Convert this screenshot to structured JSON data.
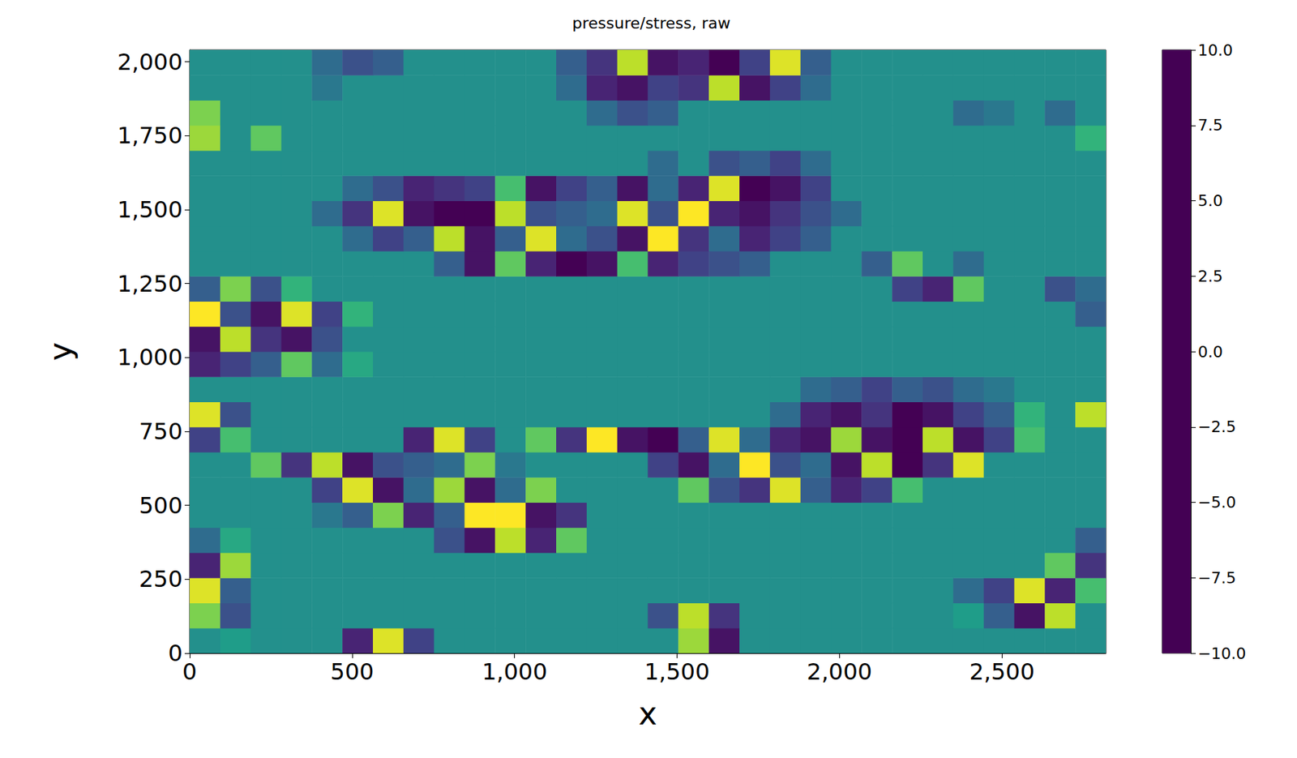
{
  "chart_data": {
    "type": "heatmap",
    "title": "pressure/stress, raw",
    "x_label": "x",
    "y_label": "y",
    "xlim": [
      0,
      2820
    ],
    "ylim": [
      0,
      2040
    ],
    "xticks": [
      0,
      500,
      1000,
      1500,
      2000,
      2500
    ],
    "yticks": [
      0,
      250,
      500,
      750,
      1000,
      1250,
      1500,
      1750,
      2000
    ],
    "x_edges": [
      0,
      94,
      188,
      282,
      376,
      470,
      564,
      658,
      752,
      846,
      940,
      1034,
      1128,
      1222,
      1316,
      1410,
      1504,
      1598,
      1692,
      1786,
      1880,
      1974,
      2068,
      2162,
      2256,
      2350,
      2444,
      2538,
      2632,
      2726,
      2820
    ],
    "y_edges": [
      0,
      85,
      170,
      255,
      340,
      425,
      510,
      595,
      680,
      765,
      850,
      935,
      1020,
      1105,
      1190,
      1275,
      1360,
      1445,
      1530,
      1615,
      1700,
      1785,
      1870,
      1955,
      2040
    ],
    "cells": [
      [
        0,
        1,
        0,
        0,
        0,
        -8,
        9,
        -6,
        0,
        0,
        0,
        0,
        0,
        0,
        0,
        0,
        7,
        -9,
        0,
        0,
        0,
        0,
        0,
        0,
        0,
        0,
        0,
        0,
        0,
        0
      ],
      [
        6,
        -5,
        0,
        0,
        0,
        0,
        0,
        0,
        0,
        0,
        0,
        0,
        0,
        0,
        0,
        -5,
        8,
        -7,
        0,
        0,
        0,
        0,
        0,
        0,
        0,
        1,
        -4,
        -9,
        8,
        0
      ],
      [
        9,
        -4,
        0,
        0,
        0,
        0,
        0,
        0,
        0,
        0,
        0,
        0,
        0,
        0,
        0,
        0,
        0,
        0,
        0,
        0,
        0,
        0,
        0,
        0,
        0,
        -3,
        -6,
        9,
        -8,
        4
      ],
      [
        -8,
        7,
        0,
        0,
        0,
        0,
        0,
        0,
        0,
        0,
        0,
        0,
        0,
        0,
        0,
        0,
        0,
        0,
        0,
        0,
        0,
        0,
        0,
        0,
        0,
        0,
        0,
        0,
        5,
        -7
      ],
      [
        -3,
        2,
        0,
        0,
        0,
        0,
        0,
        0,
        -5,
        -9,
        8,
        -8,
        5,
        0,
        0,
        0,
        0,
        0,
        0,
        0,
        0,
        0,
        0,
        0,
        0,
        0,
        0,
        0,
        0,
        -4
      ],
      [
        0,
        0,
        0,
        0,
        -2,
        -4,
        6,
        -8,
        -4,
        10,
        10,
        -9,
        -7,
        0,
        0,
        0,
        0,
        0,
        0,
        0,
        0,
        0,
        0,
        0,
        0,
        0,
        0,
        0,
        0,
        0
      ],
      [
        0,
        0,
        0,
        0,
        -6,
        9,
        -9,
        -3,
        7,
        -9,
        -3,
        6,
        0,
        0,
        0,
        0,
        5,
        -5,
        -7,
        9,
        -4,
        -8,
        -6,
        4,
        0,
        0,
        0,
        0,
        0,
        0
      ],
      [
        0,
        0,
        5,
        -7,
        8,
        -9,
        -5,
        -4,
        -3,
        6,
        -2,
        0,
        0,
        0,
        0,
        -6,
        -9,
        -3,
        10,
        -5,
        -3,
        -9,
        8,
        -10,
        -7,
        9,
        0,
        0,
        0,
        0
      ],
      [
        -6,
        4,
        0,
        0,
        0,
        0,
        0,
        -8,
        9,
        -6,
        0,
        5,
        -7,
        10,
        -9,
        -10,
        -4,
        9,
        -3,
        -8,
        -9,
        7,
        -9,
        -10,
        8,
        -9,
        -6,
        4,
        0,
        0
      ],
      [
        9,
        -5,
        0,
        0,
        0,
        0,
        0,
        0,
        0,
        0,
        0,
        0,
        0,
        0,
        0,
        0,
        0,
        0,
        0,
        -3,
        -8,
        -9,
        -7,
        -10,
        -9,
        -6,
        -4,
        3,
        0,
        8
      ],
      [
        0,
        0,
        0,
        0,
        0,
        0,
        0,
        0,
        0,
        0,
        0,
        0,
        0,
        0,
        0,
        0,
        0,
        0,
        0,
        0,
        -3,
        -4,
        -6,
        -4,
        -5,
        -3,
        -2,
        0,
        0,
        0
      ],
      [
        -8,
        -6,
        -4,
        5,
        -3,
        2,
        0,
        0,
        0,
        0,
        0,
        0,
        0,
        0,
        0,
        0,
        0,
        0,
        0,
        0,
        0,
        0,
        0,
        0,
        0,
        0,
        0,
        0,
        0,
        0
      ],
      [
        -9,
        8,
        -7,
        -9,
        -5,
        0,
        0,
        0,
        0,
        0,
        0,
        0,
        0,
        0,
        0,
        0,
        0,
        0,
        0,
        0,
        0,
        0,
        0,
        0,
        0,
        0,
        0,
        0,
        0,
        0
      ],
      [
        10,
        -5,
        -9,
        9,
        -6,
        3,
        0,
        0,
        0,
        0,
        0,
        0,
        0,
        0,
        0,
        0,
        0,
        0,
        0,
        0,
        0,
        0,
        0,
        0,
        0,
        0,
        0,
        0,
        0,
        -4
      ],
      [
        -4,
        6,
        -5,
        3,
        0,
        0,
        0,
        0,
        0,
        0,
        0,
        0,
        0,
        0,
        0,
        0,
        0,
        0,
        0,
        0,
        0,
        0,
        0,
        -6,
        -8,
        5,
        0,
        0,
        -5,
        -3
      ],
      [
        0,
        0,
        0,
        0,
        0,
        0,
        0,
        0,
        -4,
        -9,
        5,
        -8,
        -10,
        -9,
        4,
        -8,
        -6,
        -5,
        -4,
        0,
        0,
        0,
        -4,
        5,
        0,
        -3,
        0,
        0,
        0,
        0
      ],
      [
        0,
        0,
        0,
        0,
        0,
        -3,
        -6,
        -4,
        8,
        -9,
        -4,
        9,
        -3,
        -5,
        -9,
        10,
        -7,
        -3,
        -8,
        -6,
        -4,
        0,
        0,
        0,
        0,
        0,
        0,
        0,
        0,
        0
      ],
      [
        0,
        0,
        0,
        0,
        -3,
        -7,
        9,
        -9,
        -10,
        -10,
        8,
        -5,
        -4,
        -3,
        9,
        -5,
        10,
        -8,
        -9,
        -7,
        -5,
        -3,
        0,
        0,
        0,
        0,
        0,
        0,
        0,
        0
      ],
      [
        0,
        0,
        0,
        0,
        0,
        -3,
        -5,
        -8,
        -7,
        -6,
        4,
        -9,
        -6,
        -4,
        -9,
        -3,
        -8,
        9,
        -10,
        -9,
        -6,
        0,
        0,
        0,
        0,
        0,
        0,
        0,
        0,
        0
      ],
      [
        0,
        0,
        0,
        0,
        0,
        0,
        0,
        0,
        0,
        0,
        0,
        0,
        0,
        0,
        0,
        -3,
        0,
        -5,
        -4,
        -6,
        -3,
        0,
        0,
        0,
        0,
        0,
        0,
        0,
        0,
        0
      ],
      [
        7,
        0,
        5,
        0,
        0,
        0,
        0,
        0,
        0,
        0,
        0,
        0,
        0,
        0,
        0,
        0,
        0,
        0,
        0,
        0,
        0,
        0,
        0,
        0,
        0,
        0,
        0,
        0,
        0,
        3
      ],
      [
        6,
        0,
        0,
        0,
        0,
        0,
        0,
        0,
        0,
        0,
        0,
        0,
        0,
        -3,
        -5,
        -4,
        0,
        0,
        0,
        0,
        0,
        0,
        0,
        0,
        0,
        -3,
        -2,
        0,
        -3,
        0
      ],
      [
        0,
        0,
        0,
        0,
        -2,
        0,
        0,
        0,
        0,
        0,
        0,
        0,
        -3,
        -8,
        -9,
        -6,
        -7,
        8,
        -9,
        -6,
        -3,
        0,
        0,
        0,
        0,
        0,
        0,
        0,
        0,
        0
      ],
      [
        0,
        0,
        0,
        0,
        -3,
        -5,
        -4,
        0,
        0,
        0,
        0,
        0,
        -4,
        -7,
        8,
        -9,
        -8,
        -10,
        -6,
        9,
        -4,
        0,
        0,
        0,
        0,
        0,
        0,
        0,
        0,
        0
      ]
    ],
    "colorbar": {
      "range": [
        -10,
        10
      ],
      "ticks": [
        {
          "value": -10,
          "label": "−10.0"
        },
        {
          "value": -7.5,
          "label": "−7.5"
        },
        {
          "value": -5,
          "label": "−5.0"
        },
        {
          "value": -2.5,
          "label": "−2.5"
        },
        {
          "value": 0,
          "label": "0.0"
        },
        {
          "value": 2.5,
          "label": "2.5"
        },
        {
          "value": 5,
          "label": "5.0"
        },
        {
          "value": 7.5,
          "label": "7.5"
        },
        {
          "value": 10,
          "label": "10.0"
        }
      ]
    }
  }
}
